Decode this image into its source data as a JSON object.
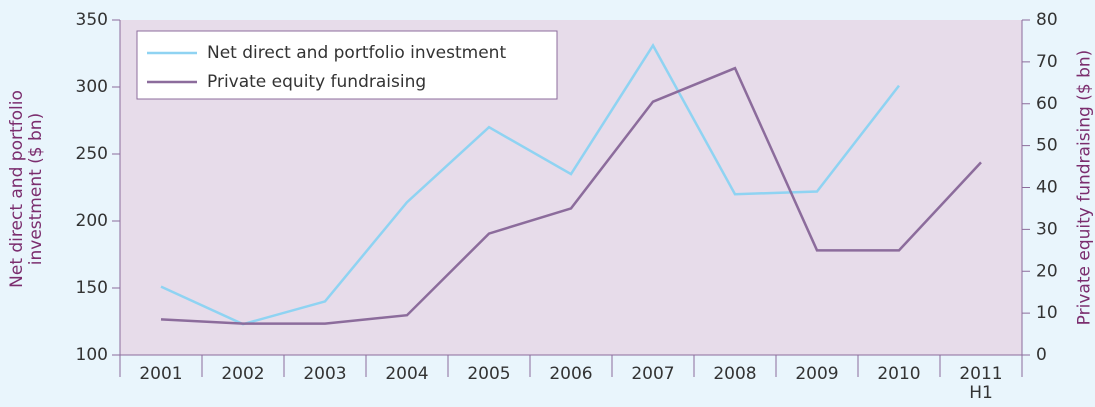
{
  "chart_data": {
    "type": "line",
    "categories": [
      "2001",
      "2002",
      "2003",
      "2004",
      "2005",
      "2006",
      "2007",
      "2008",
      "2009",
      "2010",
      "2011\nH1"
    ],
    "series": [
      {
        "name": "Net direct and portfolio investment",
        "color": "#8fd3f2",
        "values": [
          151,
          123,
          140,
          214,
          270,
          235,
          331,
          220,
          222,
          301,
          null
        ]
      },
      {
        "name": "Private equity fundraising",
        "color": "#8c6c9c",
        "axis": "y2",
        "values": [
          8.5,
          7.5,
          7.5,
          9.5,
          29,
          35,
          60.5,
          68.5,
          25,
          25,
          46
        ]
      }
    ],
    "ylabel": "Net direct and portfolio\ninvestment ($ bn)",
    "y2label": "Private equity fundraising ($ bn)",
    "ylim": [
      100,
      350
    ],
    "yticks": [
      100,
      150,
      200,
      250,
      300,
      350
    ],
    "y2lim": [
      0,
      80
    ],
    "y2ticks": [
      0,
      10,
      20,
      30,
      40,
      50,
      60,
      70,
      80
    ],
    "legend": "upper left"
  }
}
